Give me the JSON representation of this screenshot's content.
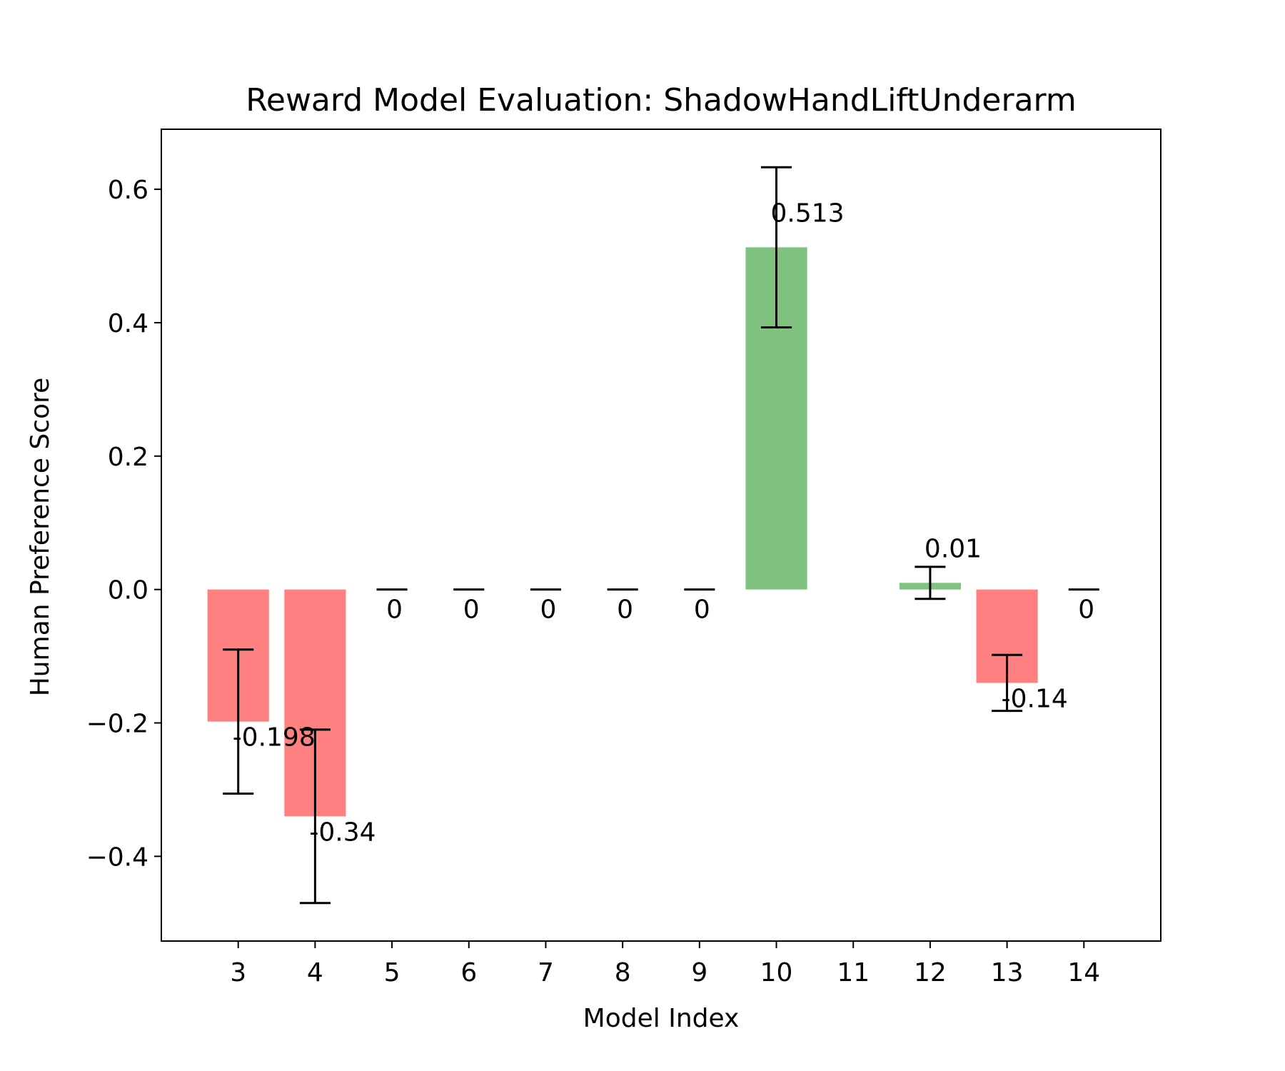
{
  "chart_data": {
    "type": "bar",
    "title": "Reward Model Evaluation: ShadowHandLiftUnderarm",
    "xlabel": "Model Index",
    "ylabel": "Human Preference Score",
    "categories": [
      "3",
      "4",
      "5",
      "6",
      "7",
      "8",
      "9",
      "10",
      "11",
      "12",
      "13",
      "14"
    ],
    "x": [
      3,
      4,
      5,
      6,
      7,
      8,
      9,
      10,
      11,
      12,
      13,
      14
    ],
    "values": [
      -0.198,
      -0.34,
      0,
      0,
      0,
      0,
      0,
      0.513,
      null,
      0.01,
      -0.14,
      0
    ],
    "data_labels": [
      "-0.198",
      "-0.34",
      "0",
      "0",
      "0",
      "0",
      "0",
      "0.513",
      "",
      "0.01",
      "-0.14",
      "0"
    ],
    "errors": [
      0.108,
      0.13,
      0,
      0,
      0,
      0,
      0,
      0.12,
      null,
      0.024,
      0.042,
      0
    ],
    "xlim": [
      2.0,
      15.0
    ],
    "ylim": [
      -0.527,
      0.69
    ],
    "yticks": [
      -0.4,
      -0.2,
      0.0,
      0.2,
      0.4,
      0.6
    ],
    "ytick_labels": [
      "−0.4",
      "−0.2",
      "0.0",
      "0.2",
      "0.4",
      "0.6"
    ],
    "grid": false,
    "legend": "none",
    "colors": {
      "positive": "#80c280",
      "negative": "#ff8080",
      "error_bar": "#000000",
      "axis": "#000000"
    }
  }
}
